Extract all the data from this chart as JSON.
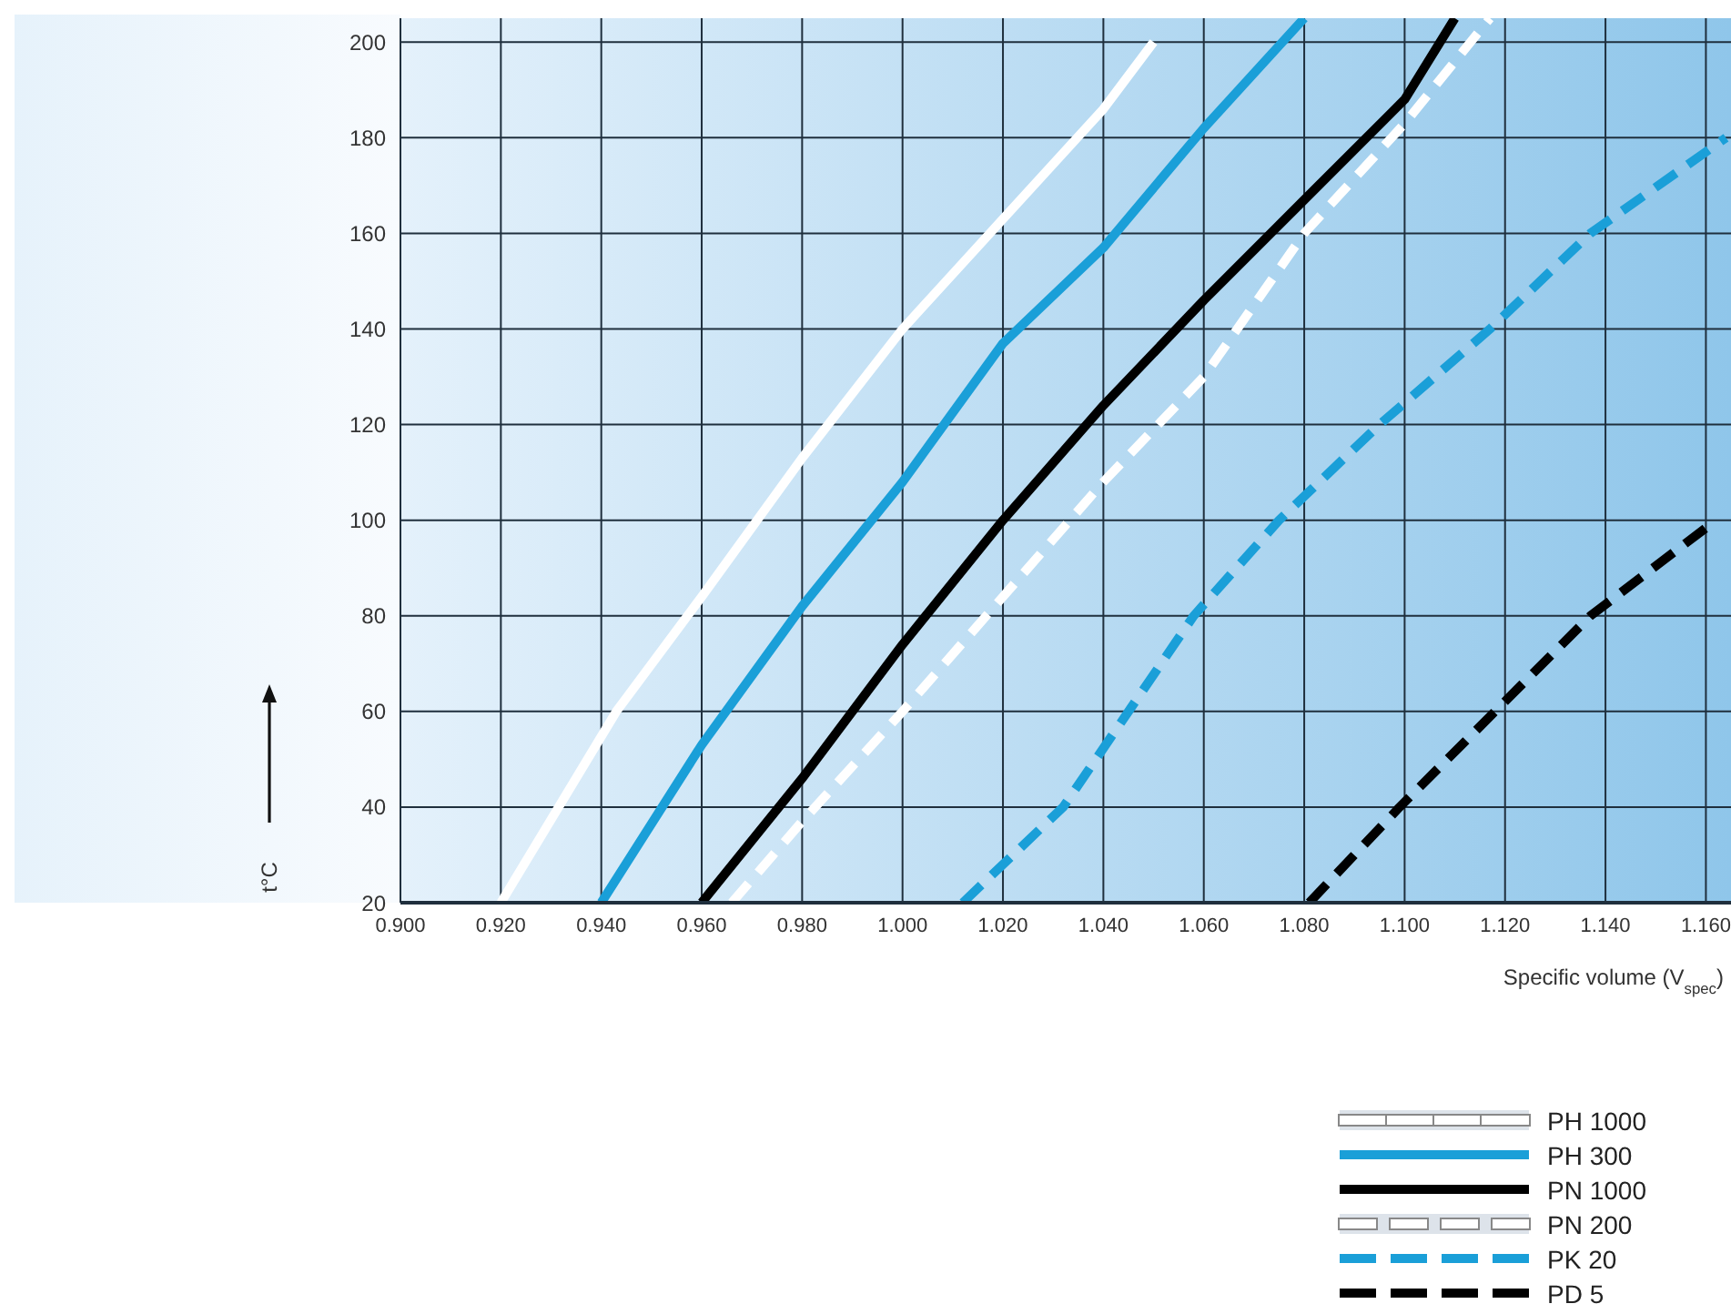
{
  "chart_data": {
    "type": "line",
    "xlabel": "Specific volume (V$_{spec}$)",
    "ylabel": "t°C",
    "xlim": [
      0.9,
      1.165
    ],
    "xticks": [
      {
        "value": 0.9,
        "label": "0.900"
      },
      {
        "value": 0.92,
        "label": "0.920"
      },
      {
        "value": 0.94,
        "label": "0.940"
      },
      {
        "value": 0.96,
        "label": "0.960"
      },
      {
        "value": 0.98,
        "label": "0.980"
      },
      {
        "value": 1.0,
        "label": "1.000"
      },
      {
        "value": 1.02,
        "label": "1.020"
      },
      {
        "value": 1.04,
        "label": "1.040"
      },
      {
        "value": 1.06,
        "label": "1.060"
      },
      {
        "value": 1.08,
        "label": "1.080"
      },
      {
        "value": 1.1,
        "label": "1.100"
      },
      {
        "value": 1.12,
        "label": "1.120"
      },
      {
        "value": 1.14,
        "label": "1.140"
      },
      {
        "value": 1.16,
        "label": "1.160"
      }
    ],
    "ylim": [
      20,
      205
    ],
    "yticks": [
      20,
      40,
      60,
      80,
      100,
      120,
      140,
      160,
      180,
      200
    ],
    "grid": true,
    "legend": "bottom right",
    "marker": "none",
    "series": [
      {
        "name": "PH 1000",
        "color": "#ffffff",
        "line_style": "solid",
        "x": [
          0.92,
          0.943,
          0.96,
          0.98,
          1.0,
          1.02,
          1.04,
          1.05
        ],
        "values": [
          20,
          60,
          84,
          113,
          140,
          163,
          186,
          200
        ]
      },
      {
        "name": "PH 300",
        "color": "#1a9fd8",
        "line_style": "solid",
        "x": [
          0.94,
          0.96,
          0.98,
          1.0,
          1.02,
          1.04,
          1.06,
          1.08
        ],
        "values": [
          20,
          53,
          82,
          108,
          137,
          157,
          182,
          205
        ]
      },
      {
        "name": "PN 1000",
        "color": "#000000",
        "line_style": "solid",
        "x": [
          0.96,
          0.98,
          1.0,
          1.02,
          1.04,
          1.06,
          1.08,
          1.1,
          1.11
        ],
        "values": [
          20,
          46,
          74,
          100,
          124,
          146,
          167,
          188,
          205
        ]
      },
      {
        "name": "PN 200",
        "color": "#ffffff",
        "line_style": "dashed",
        "x": [
          0.966,
          0.98,
          1.0,
          1.02,
          1.04,
          1.06,
          1.08,
          1.1,
          1.117
        ],
        "values": [
          20,
          37,
          60,
          84,
          108,
          130,
          160,
          183,
          205
        ]
      },
      {
        "name": "PK 20",
        "color": "#1a9fd8",
        "line_style": "dashed",
        "x": [
          1.012,
          1.032,
          1.045,
          1.058,
          1.075,
          1.095,
          1.117,
          1.137,
          1.164
        ],
        "values": [
          20,
          40,
          60,
          80,
          100,
          120,
          140,
          160,
          180
        ]
      },
      {
        "name": "PD 5",
        "color": "#000000",
        "line_style": "dashed",
        "x": [
          1.081,
          1.099,
          1.118,
          1.137,
          1.162
        ],
        "values": [
          20,
          40,
          60,
          80,
          100
        ]
      }
    ]
  }
}
